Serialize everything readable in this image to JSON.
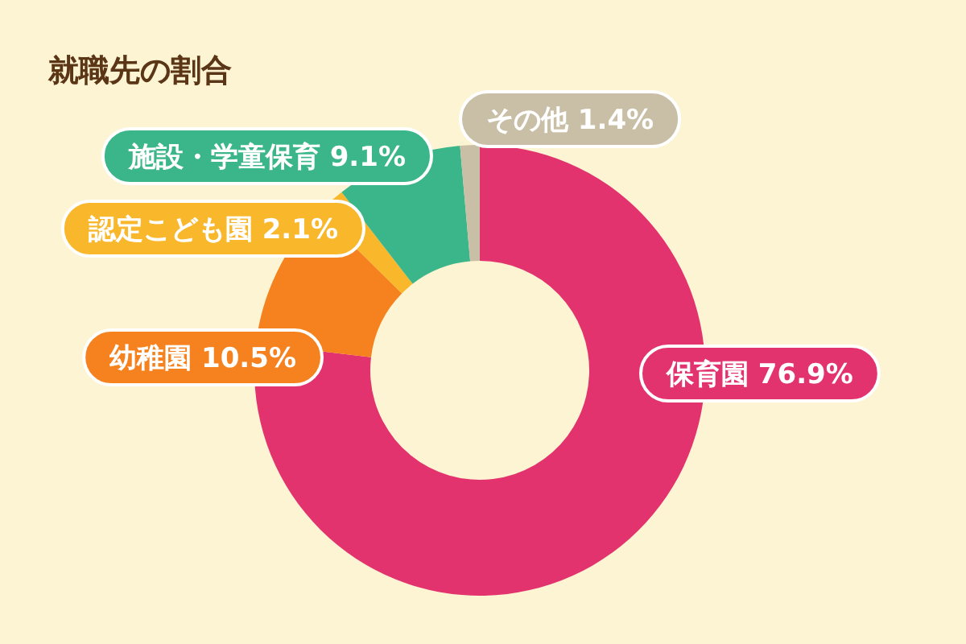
{
  "chart_data": {
    "type": "donut",
    "title": "就職先の割合",
    "categories": [
      "保育園",
      "幼稚園",
      "認定こども園",
      "施設・学童保育",
      "その他"
    ],
    "values": [
      76.9,
      10.5,
      2.1,
      9.1,
      1.4
    ],
    "value_labels": [
      "76.9%",
      "10.5%",
      "2.1%",
      "9.1%",
      "1.4%"
    ],
    "colors": [
      "#e2336e",
      "#f5821f",
      "#f9b72c",
      "#3bb58a",
      "#c9bfa6"
    ]
  }
}
